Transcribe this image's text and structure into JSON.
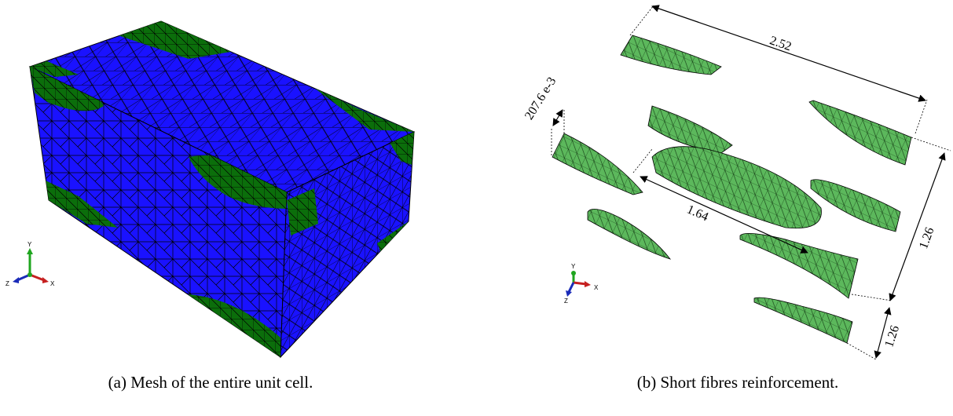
{
  "figure": {
    "panel_a": {
      "caption": "(a) Mesh of the entire unit cell."
    },
    "panel_b": {
      "caption": "(b) Short fibres reinforcement."
    }
  },
  "triad": {
    "x_label": "X",
    "y_label": "Y",
    "z_label": "Z"
  },
  "dimensions": {
    "length": "2.52",
    "fibre_length": "1.64",
    "height_upper": "1.26",
    "height_lower": "1.26",
    "fibre_diameter": "207.6 e-3"
  },
  "colors": {
    "matrix_mesh": "#1a12ff",
    "fibre_mesh": "#0b6e0b",
    "fibre_isolated": "#5cb85c",
    "mesh_line": "#000000"
  }
}
